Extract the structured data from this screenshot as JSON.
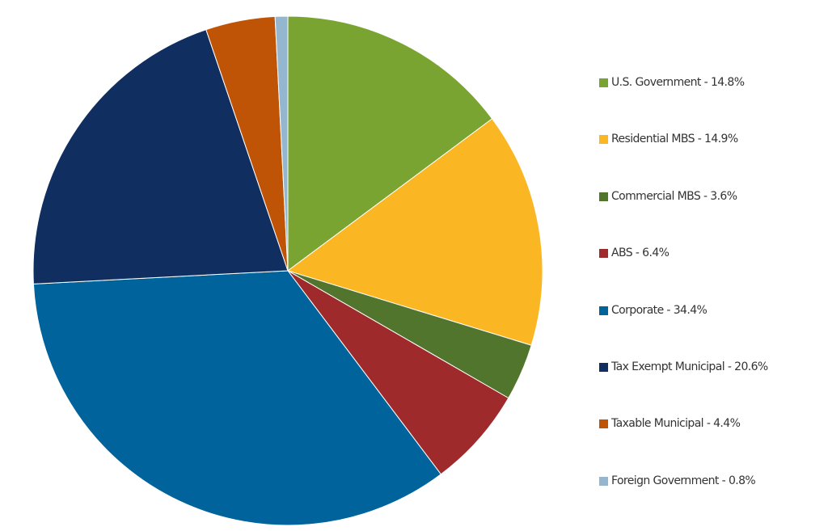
{
  "chart_data": {
    "type": "pie",
    "title": "",
    "start_angle_deg": 0,
    "direction": "clockwise",
    "legend_position": "right",
    "slices": [
      {
        "label": "U.S. Government - 14.8%",
        "value": 14.8,
        "color": "#79A432"
      },
      {
        "label": "Residential MBS - 14.9%",
        "value": 14.9,
        "color": "#FBB623"
      },
      {
        "label": "Commercial MBS - 3.6%",
        "value": 3.6,
        "color": "#52752E"
      },
      {
        "label": "ABS - 6.4%",
        "value": 6.4,
        "color": "#9E2A2B"
      },
      {
        "label": "Corporate - 34.4%",
        "value": 34.4,
        "color": "#00639B"
      },
      {
        "label": "Tax Exempt Municipal - 20.6%",
        "value": 20.6,
        "color": "#102F60"
      },
      {
        "label": "Taxable Municipal - 4.4%",
        "value": 4.4,
        "color": "#BF5406"
      },
      {
        "label": "Foreign Government - 0.8%",
        "value": 0.8,
        "color": "#94B6CF"
      }
    ]
  }
}
